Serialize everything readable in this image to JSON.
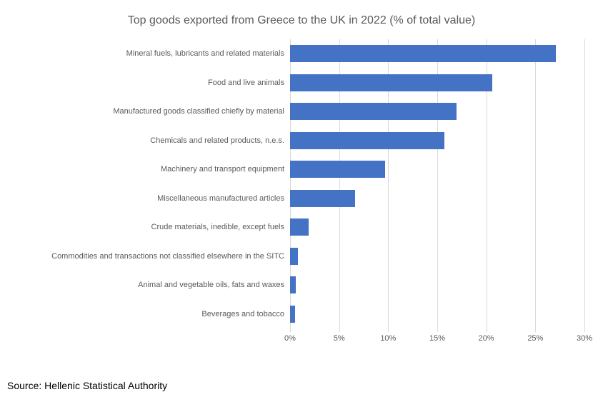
{
  "chart_data": {
    "type": "bar",
    "orientation": "horizontal",
    "title": "Top goods exported from Greece to the UK in 2022 (% of total value)",
    "categories": [
      "Mineral fuels, lubricants and related materials",
      "Food and live animals",
      "Manufactured goods classified chiefly by material",
      "Chemicals and related products, n.e.s.",
      "Machinery and transport equipment",
      "Miscellaneous manufactured articles",
      "Crude materials, inedible, except fuels",
      "Commodities and transactions not classified elsewhere in the SITC",
      "Animal and vegetable oils, fats and waxes",
      "Beverages and tobacco"
    ],
    "values": [
      27.1,
      20.6,
      17.0,
      15.7,
      9.7,
      6.6,
      1.9,
      0.8,
      0.6,
      0.5
    ],
    "xlabel": "",
    "ylabel": "",
    "xlim": [
      0,
      30
    ],
    "x_tick_values": [
      0,
      5,
      10,
      15,
      20,
      25,
      30
    ],
    "x_tick_labels": [
      "0%",
      "5%",
      "10%",
      "15%",
      "20%",
      "25%",
      "30%"
    ],
    "grid": "vertical-gridlines-on",
    "legend_position": "none",
    "bar_color": "#4472C4",
    "gridline_color": "#D9D9D9",
    "text_color": "#595959"
  },
  "source": "Source: Hellenic Statistical Authority"
}
